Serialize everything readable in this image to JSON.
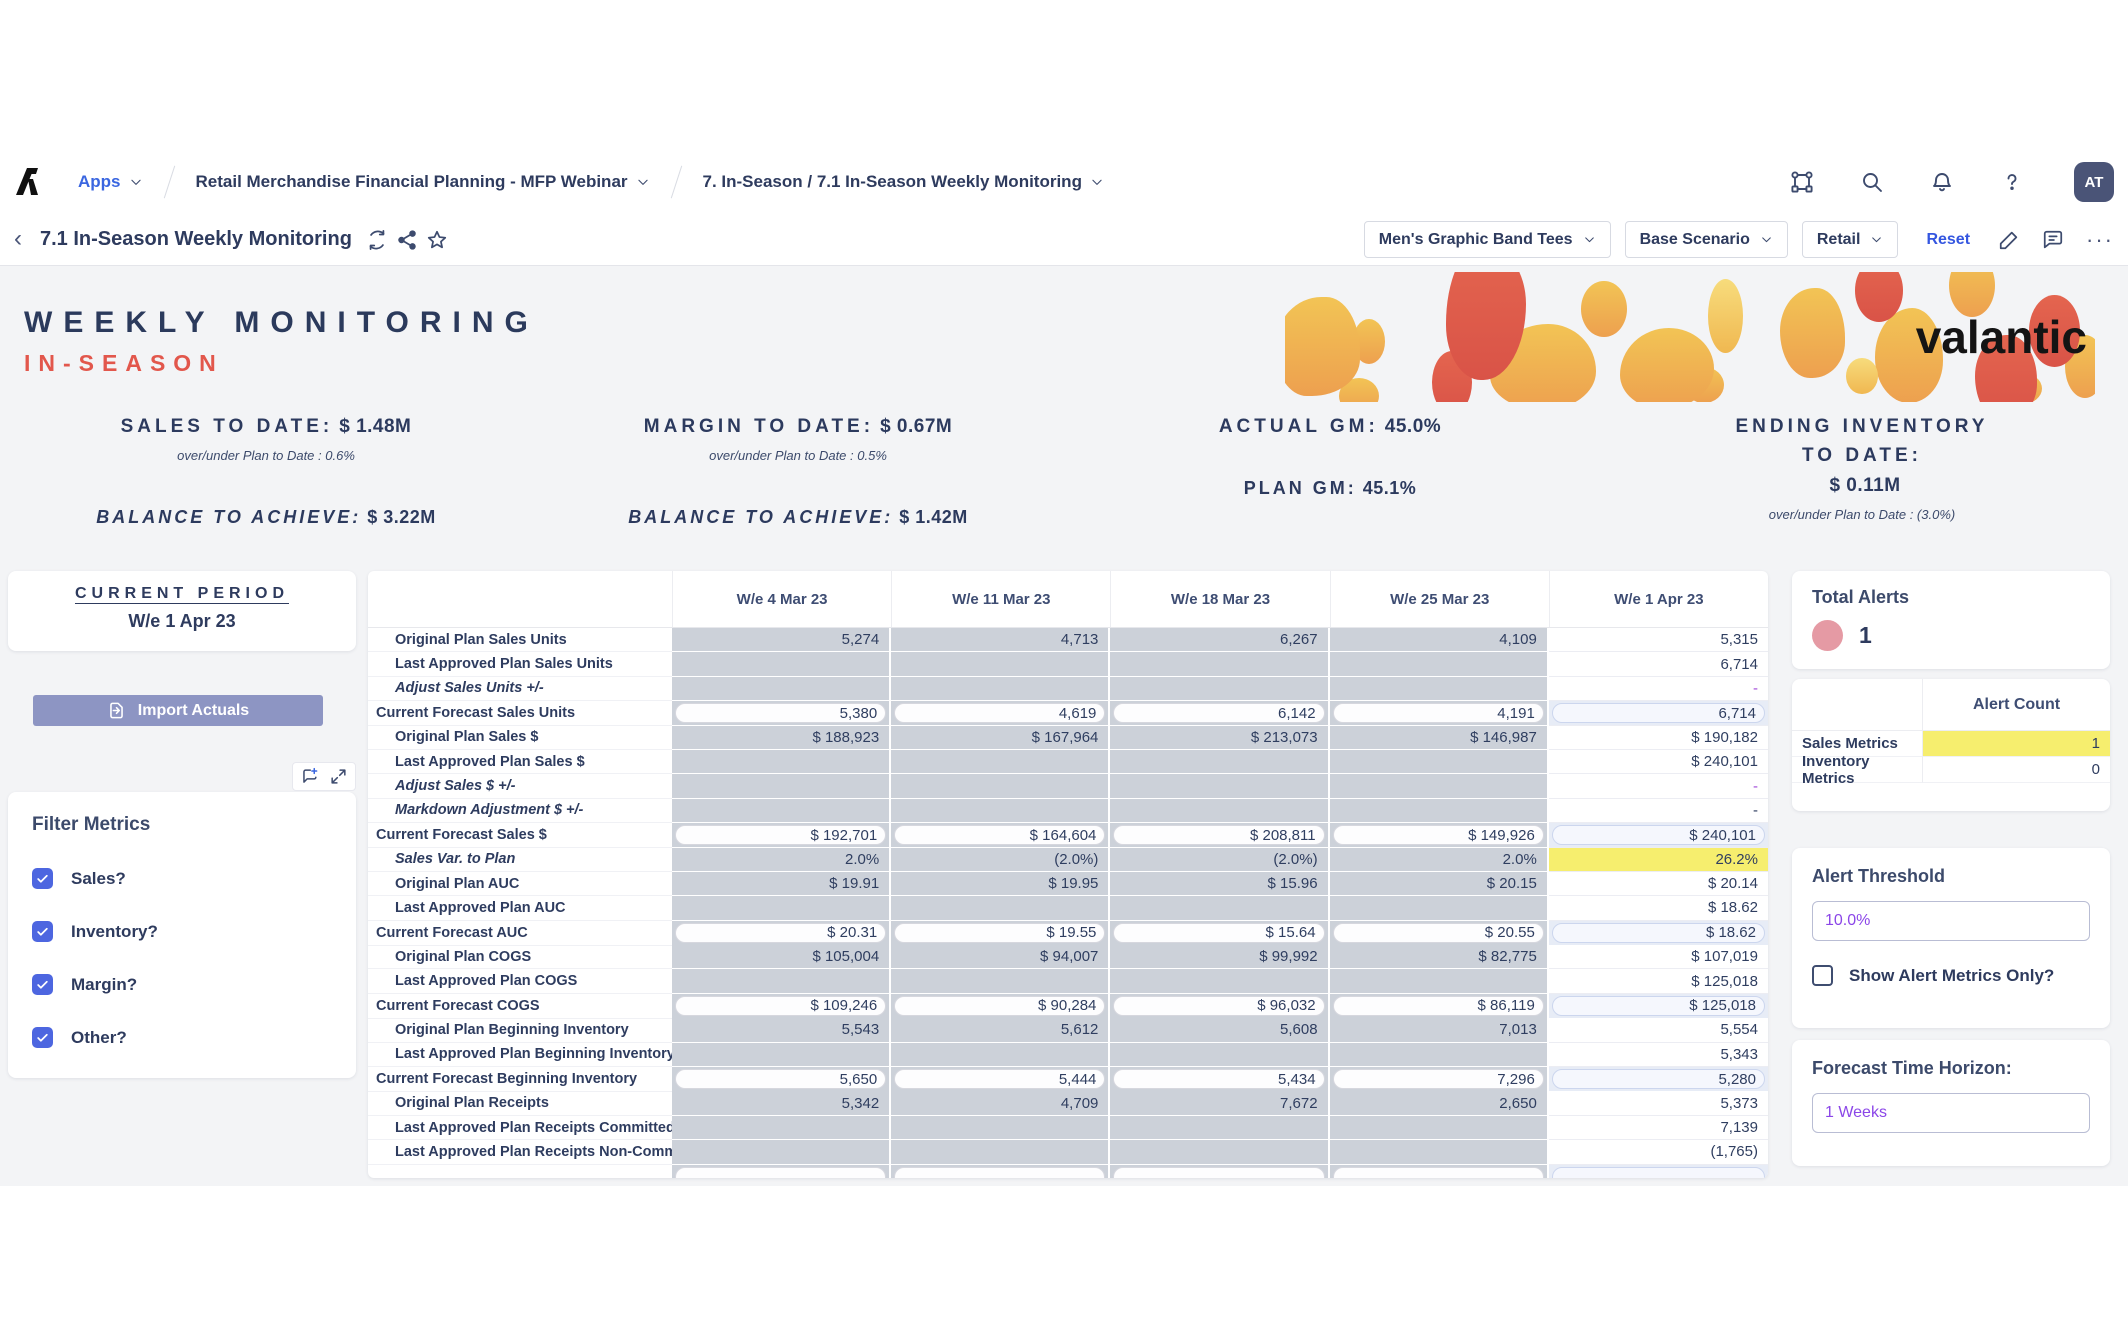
{
  "nav": {
    "apps": "Apps",
    "breadcrumb_model": "Retail Merchandise Financial Planning - MFP Webinar",
    "breadcrumb_page": "7. In-Season / 7.1 In-Season Weekly Monitoring",
    "avatar": "AT",
    "icons": [
      "model-switcher-icon",
      "search-icon",
      "bell-icon",
      "help-icon"
    ]
  },
  "toolbar": {
    "title": "7.1 In-Season Weekly Monitoring",
    "title_icons": [
      "refresh-icon",
      "share-icon",
      "star-icon"
    ],
    "selectors": [
      "Men's Graphic Band Tees",
      "Base Scenario",
      "Retail"
    ],
    "reset": "Reset",
    "right_icons": [
      "edit-icon",
      "comment-icon",
      "more-icon"
    ]
  },
  "banner": {
    "title": "WEEKLY MONITORING",
    "subtitle": "IN-SEASON",
    "brand": "valantic",
    "accent_colors": [
      "#f0bc4e",
      "#eda551",
      "#e96f52",
      "#d95347"
    ]
  },
  "kpis": {
    "sales": {
      "label": "SALES TO DATE:",
      "value": "$ 1.48M",
      "sub": "over/under Plan to Date : 0.6%",
      "balance_label": "BALANCE TO ACHIEVE:",
      "balance_value": "$ 3.22M"
    },
    "margin": {
      "label": "MARGIN TO DATE:",
      "value": "$ 0.67M",
      "sub": "over/under Plan to Date : 0.5%",
      "balance_label": "BALANCE TO ACHIEVE:",
      "balance_value": "$ 1.42M"
    },
    "gm": {
      "label": "ACTUAL GM:",
      "value": "45.0%",
      "label2": "PLAN GM:",
      "value2": "45.1%"
    },
    "inventory": {
      "label_line1": "ENDING INVENTORY",
      "label_line2": "TO DATE:",
      "value": "$ 0.11M",
      "sub": "over/under Plan to Date : (3.0%)"
    }
  },
  "left_panel": {
    "current_period": {
      "title": "CURRENT PERIOD",
      "value": "W/e 1 Apr 23"
    },
    "import_label": "Import Actuals",
    "filter": {
      "title": "Filter Metrics",
      "items": [
        {
          "label": "Sales?",
          "checked": true
        },
        {
          "label": "Inventory?",
          "checked": true
        },
        {
          "label": "Margin?",
          "checked": true
        },
        {
          "label": "Other?",
          "checked": true
        }
      ],
      "corner_icons": [
        "comment-add-icon",
        "expand-icon"
      ]
    }
  },
  "grid": {
    "columns": [
      "W/e 4 Mar 23",
      "W/e 11 Mar 23",
      "W/e 18 Mar 23",
      "W/e 25 Mar 23",
      "W/e 1 Apr 23"
    ],
    "rows": [
      {
        "label": "Original Plan Sales Units",
        "indent": true,
        "values": [
          "5,274",
          "4,713",
          "6,267",
          "4,109",
          "5,315"
        ]
      },
      {
        "label": "Last Approved Plan Sales Units",
        "indent": true,
        "values": [
          "",
          "",
          "",
          "",
          "6,714"
        ]
      },
      {
        "label": "Adjust Sales Units +/-",
        "indent": true,
        "italic": true,
        "last_dash": "purple",
        "values": [
          "",
          "",
          "",
          "",
          "-"
        ]
      },
      {
        "label": "Current Forecast Sales Units",
        "pill": true,
        "values": [
          "5,380",
          "4,619",
          "6,142",
          "4,191",
          "6,714"
        ]
      },
      {
        "label": "Original Plan Sales $",
        "indent": true,
        "values": [
          "$ 188,923",
          "$ 167,964",
          "$ 213,073",
          "$ 146,987",
          "$ 190,182"
        ]
      },
      {
        "label": "Last Approved Plan Sales $",
        "indent": true,
        "values": [
          "",
          "",
          "",
          "",
          "$ 240,101"
        ]
      },
      {
        "label": "Adjust Sales $ +/-",
        "indent": true,
        "italic": true,
        "last_dash": "purple",
        "values": [
          "",
          "",
          "",
          "",
          "-"
        ]
      },
      {
        "label": "Markdown Adjustment $ +/-",
        "indent": true,
        "italic": true,
        "values": [
          "",
          "",
          "",
          "",
          "-"
        ]
      },
      {
        "label": "Current Forecast Sales $",
        "pill": true,
        "values": [
          "$ 192,701",
          "$ 164,604",
          "$ 208,811",
          "$ 149,926",
          "$ 240,101"
        ]
      },
      {
        "label": "Sales Var. to Plan",
        "indent": true,
        "italic": true,
        "last_highlight": true,
        "values": [
          "2.0%",
          "(2.0%)",
          "(2.0%)",
          "2.0%",
          "26.2%"
        ]
      },
      {
        "label": "Original Plan AUC",
        "indent": true,
        "values": [
          "$ 19.91",
          "$ 19.95",
          "$ 15.96",
          "$ 20.15",
          "$ 20.14"
        ]
      },
      {
        "label": "Last Approved Plan AUC",
        "indent": true,
        "values": [
          "",
          "",
          "",
          "",
          "$ 18.62"
        ]
      },
      {
        "label": "Current Forecast AUC",
        "pill": true,
        "values": [
          "$ 20.31",
          "$ 19.55",
          "$ 15.64",
          "$ 20.55",
          "$ 18.62"
        ]
      },
      {
        "label": "Original Plan COGS",
        "indent": true,
        "values": [
          "$ 105,004",
          "$ 94,007",
          "$ 99,992",
          "$ 82,775",
          "$ 107,019"
        ]
      },
      {
        "label": "Last Approved Plan COGS",
        "indent": true,
        "values": [
          "",
          "",
          "",
          "",
          "$ 125,018"
        ]
      },
      {
        "label": "Current Forecast COGS",
        "pill": true,
        "values": [
          "$ 109,246",
          "$ 90,284",
          "$ 96,032",
          "$ 86,119",
          "$ 125,018"
        ]
      },
      {
        "label": "Original Plan Beginning Inventory",
        "indent": true,
        "values": [
          "5,543",
          "5,612",
          "5,608",
          "7,013",
          "5,554"
        ]
      },
      {
        "label": "Last Approved Plan Beginning Inventory",
        "indent": true,
        "values": [
          "",
          "",
          "",
          "",
          "5,343"
        ]
      },
      {
        "label": "Current Forecast Beginning Inventory",
        "pill": true,
        "values": [
          "5,650",
          "5,444",
          "5,434",
          "7,296",
          "5,280"
        ]
      },
      {
        "label": "Original Plan Receipts",
        "indent": true,
        "values": [
          "5,342",
          "4,709",
          "7,672",
          "2,650",
          "5,373"
        ]
      },
      {
        "label": "Last Approved Plan Receipts Committed",
        "indent": true,
        "values": [
          "",
          "",
          "",
          "",
          "7,139"
        ]
      },
      {
        "label": "Last Approved Plan Receipts Non-Committed",
        "indent": true,
        "values": [
          "",
          "",
          "",
          "",
          "(1,765)"
        ]
      },
      {
        "label": "",
        "pill": true,
        "clipped": true,
        "values": [
          "",
          "",
          "",
          "",
          ""
        ]
      }
    ]
  },
  "right_panel": {
    "total_alerts": {
      "label": "Total Alerts",
      "count": "1",
      "badge_color": "#e59aa4"
    },
    "alert_table": {
      "header": "Alert Count",
      "rows": [
        {
          "label": "Sales Metrics",
          "value": "1",
          "highlight": true
        },
        {
          "label": "Inventory Metrics",
          "value": "0",
          "highlight": false
        }
      ]
    },
    "threshold": {
      "label": "Alert Threshold",
      "value": "10.0%"
    },
    "show_alert_only_label": "Show Alert Metrics Only?",
    "forecast": {
      "label": "Forecast Time Horizon:",
      "value": "1 Weeks"
    }
  }
}
